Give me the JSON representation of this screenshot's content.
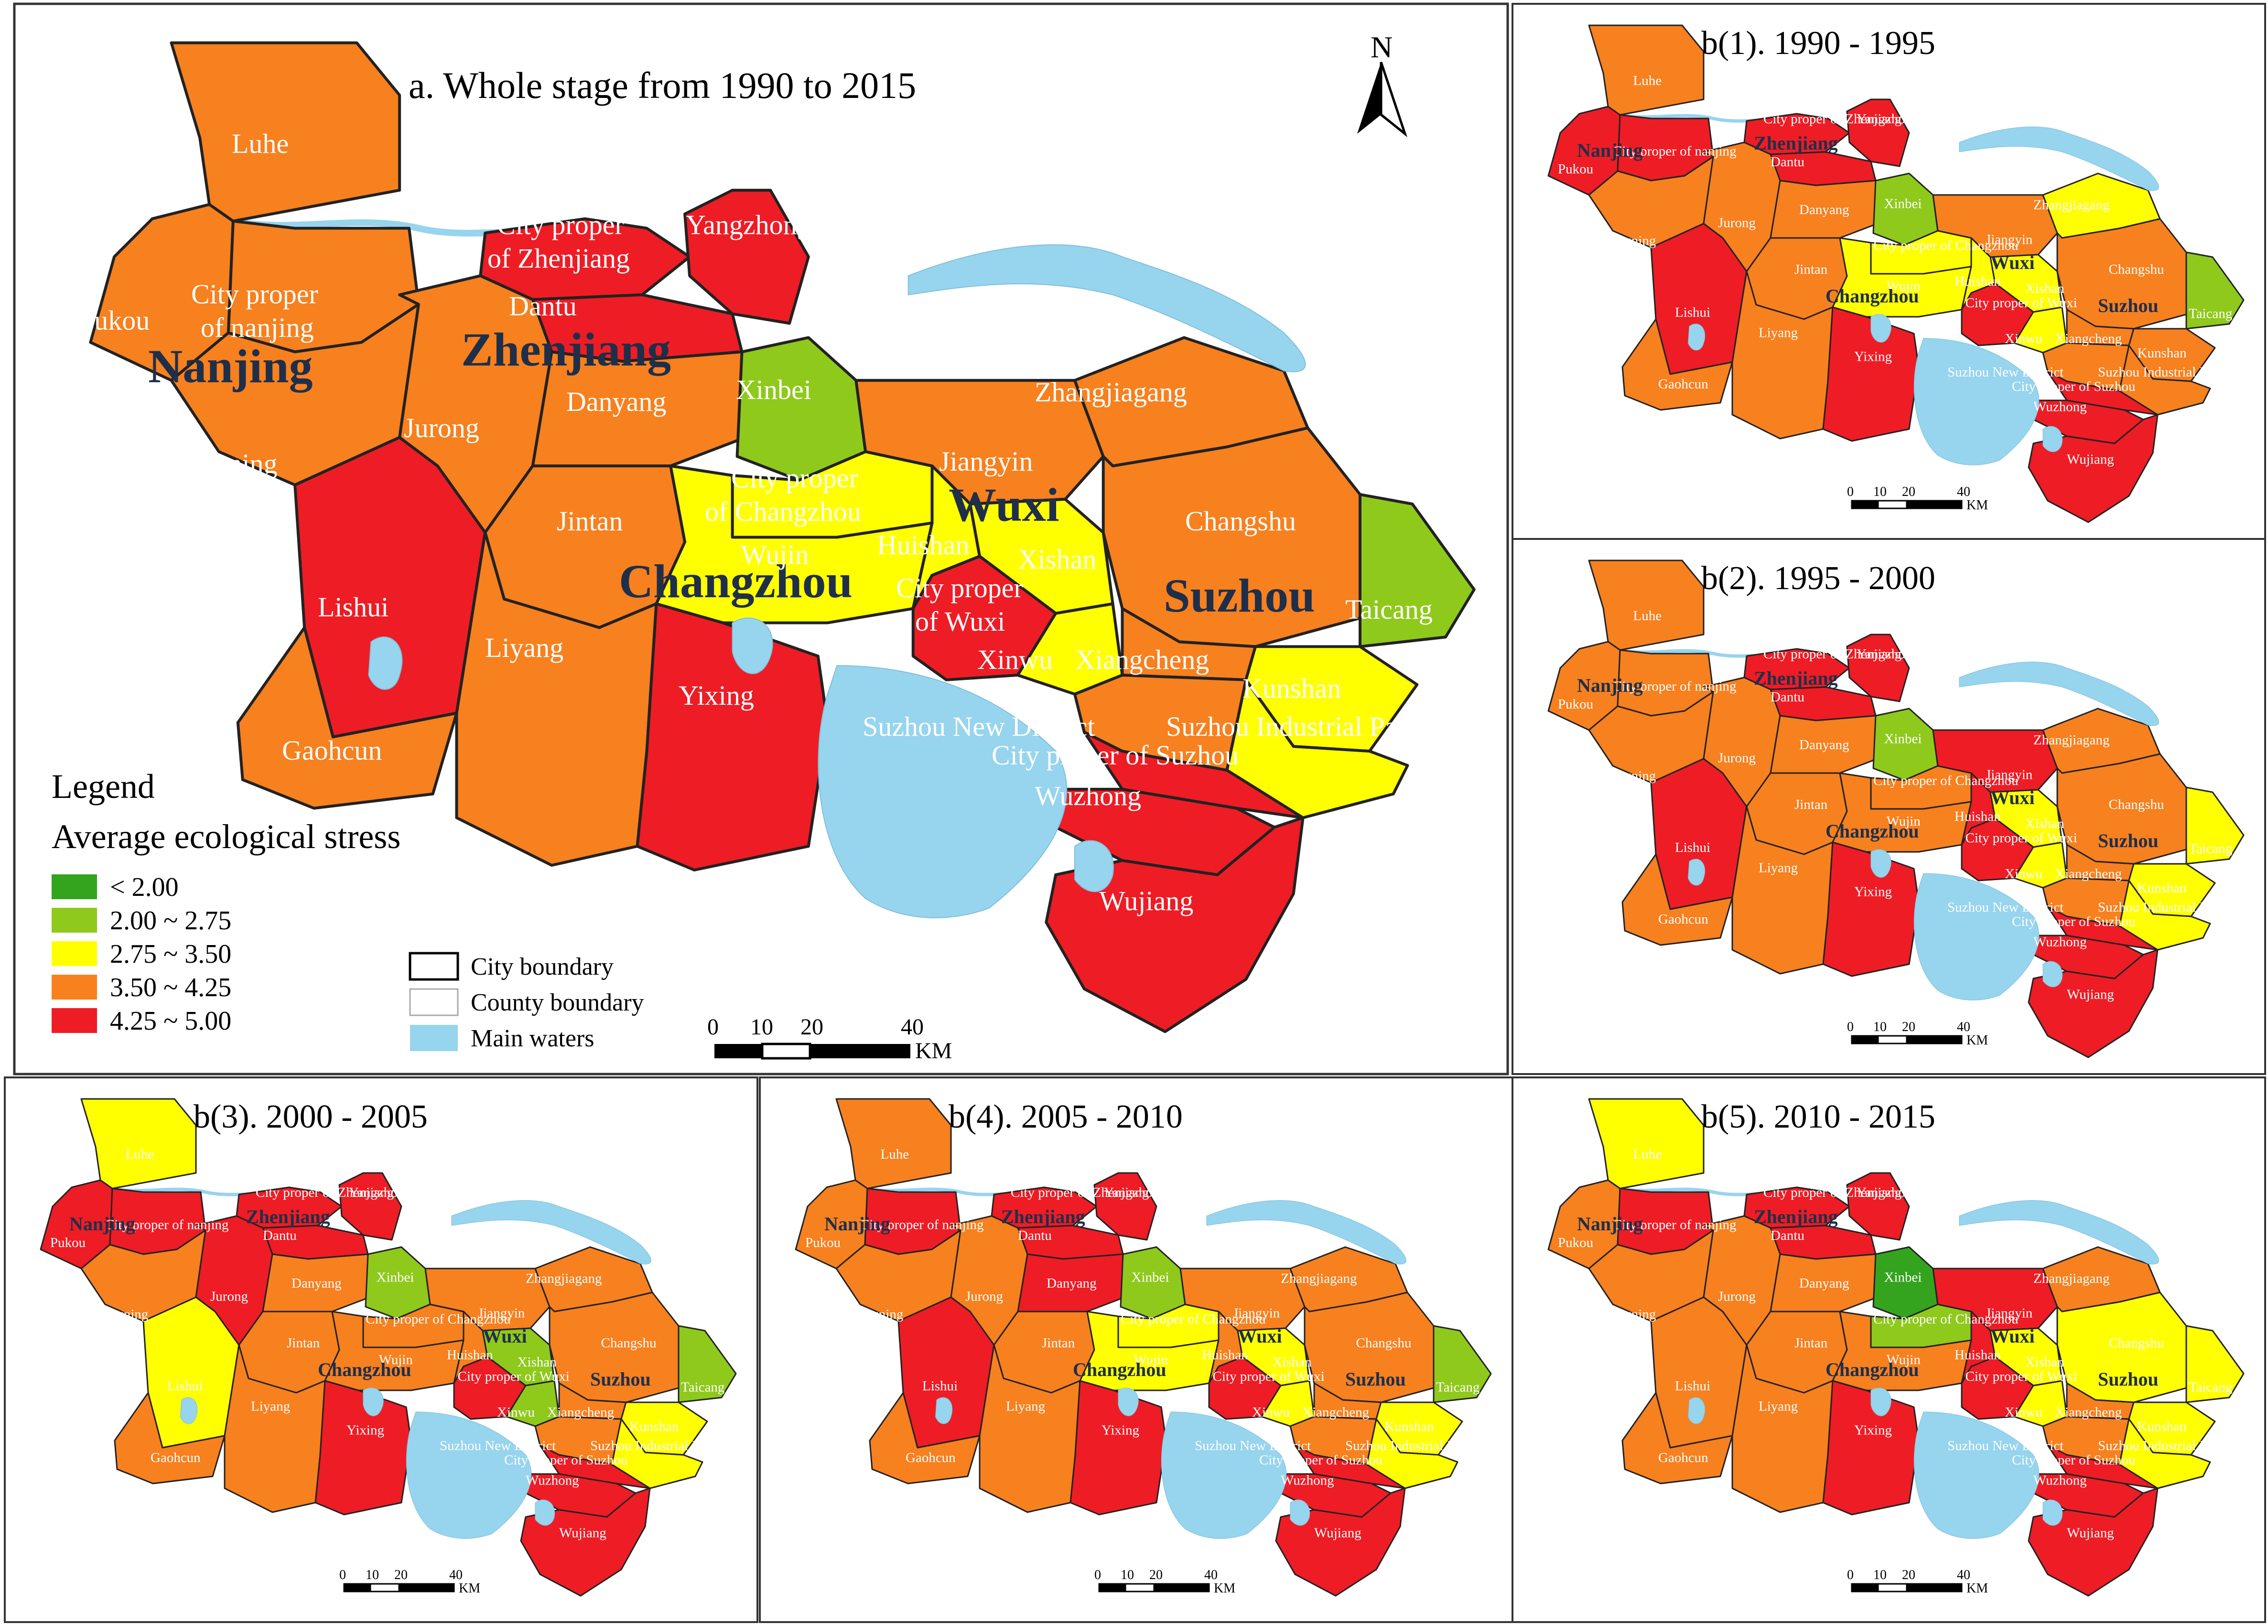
{
  "legend": {
    "title": "Legend",
    "subtitle": "Average ecological stress",
    "classes": [
      {
        "label": "< 2.00",
        "color": "#34a41e"
      },
      {
        "label": "2.00 ~ 2.75",
        "color": "#8fc91c"
      },
      {
        "label": "2.75 ~ 3.50",
        "color": "#ffff00"
      },
      {
        "label": "3.50 ~ 4.25",
        "color": "#f7801f"
      },
      {
        "label": "4.25 ~ 5.00",
        "color": "#ee1c25"
      }
    ],
    "boundaries": [
      {
        "label": "City boundary",
        "key": "city"
      },
      {
        "label": "County boundary",
        "key": "county"
      },
      {
        "label": "Main waters",
        "key": "water"
      }
    ]
  },
  "north_arrow": "N",
  "water_color": "#97d4ee",
  "scalebar": {
    "ticks": [
      "0",
      "10",
      "20",
      "40"
    ],
    "unit": "KM"
  },
  "city_labels": {
    "nanjing": "Nanjing",
    "zhenjiang": "Zhenjiang",
    "changzhou": "Changzhou",
    "wuxi": "Wuxi",
    "suzhou": "Suzhou"
  },
  "county_labels": {
    "luhe": "Luhe",
    "pukou": "Pukou",
    "nanjing_proper": "City proper\nof nanjing",
    "jiangning": "Jiangning",
    "lishui": "Lishui",
    "gaohcun": "Gaohcun",
    "zhenjiang_proper": "City proper\nof Zhenjiang",
    "yangzhong": "Yangzhong",
    "dantu": "Dantu",
    "jurong": "Jurong",
    "danyang": "Danyang",
    "jintan": "Jintan",
    "liyang": "Liyang",
    "xinbei": "Xinbei",
    "changzhou_proper": "City proper\nof Changzhou",
    "wujin": "Wujin",
    "yixing": "Yixing",
    "jiangyin": "Jiangyin",
    "huishan": "Huishan",
    "xishan": "Xishan",
    "wuxi_proper": "City proper\nof Wuxi",
    "xinwu": "Xinwu",
    "xiangcheng": "Xiangcheng",
    "zhangjiagang": "Zhangjiagang",
    "changshu": "Changshu",
    "taicang": "Taicang",
    "kunshan": "Kunshan",
    "sip": "Suzhou Industrial Park",
    "snd": "Suzhou New District",
    "suzhou_proper": "City proper of Suzhou",
    "wuzhong": "Wuzhong",
    "wujiang": "Wujiang"
  },
  "panels": [
    {
      "id": "a",
      "title": "a. Whole stage from 1990 to 2015",
      "classes": {
        "luhe": 3,
        "pukou": 3,
        "nanjing_proper": 3,
        "jiangning": 3,
        "lishui": 4,
        "gaohcun": 3,
        "zhenjiang_proper": 4,
        "yangzhong": 4,
        "dantu": 4,
        "jurong": 3,
        "danyang": 3,
        "jintan": 3,
        "liyang": 3,
        "xinbei": 1,
        "changzhou_proper": 2,
        "wujin": 2,
        "yixing": 4,
        "jiangyin": 3,
        "huishan": 2,
        "xishan": 2,
        "wuxi_proper": 4,
        "xinwu": 2,
        "zhangjiagang": 3,
        "changshu": 3,
        "taicang": 1,
        "kunshan": 2,
        "sip": 2,
        "snd": 3,
        "suzhou_proper": 4,
        "xiangcheng": 3,
        "wuzhong": 4,
        "wujiang": 4
      }
    },
    {
      "id": "b1",
      "title": "b(1). 1990 - 1995",
      "classes": {
        "luhe": 3,
        "pukou": 4,
        "nanjing_proper": 4,
        "jiangning": 3,
        "lishui": 4,
        "gaohcun": 3,
        "zhenjiang_proper": 4,
        "yangzhong": 4,
        "dantu": 4,
        "jurong": 3,
        "danyang": 3,
        "jintan": 3,
        "liyang": 3,
        "xinbei": 1,
        "changzhou_proper": 2,
        "wujin": 2,
        "yixing": 4,
        "jiangyin": 3,
        "huishan": 2,
        "xishan": 2,
        "wuxi_proper": 4,
        "xinwu": 2,
        "zhangjiagang": 2,
        "changshu": 3,
        "taicang": 1,
        "kunshan": 3,
        "sip": 3,
        "snd": 3,
        "suzhou_proper": 4,
        "xiangcheng": 3,
        "wuzhong": 4,
        "wujiang": 4
      }
    },
    {
      "id": "b2",
      "title": "b(2). 1995 - 2000",
      "classes": {
        "luhe": 3,
        "pukou": 3,
        "nanjing_proper": 3,
        "jiangning": 3,
        "lishui": 4,
        "gaohcun": 3,
        "zhenjiang_proper": 4,
        "yangzhong": 4,
        "dantu": 4,
        "jurong": 3,
        "danyang": 3,
        "jintan": 3,
        "liyang": 3,
        "xinbei": 1,
        "changzhou_proper": 3,
        "wujin": 3,
        "yixing": 4,
        "jiangyin": 4,
        "huishan": 4,
        "xishan": 2,
        "wuxi_proper": 4,
        "xinwu": 2,
        "zhangjiagang": 3,
        "changshu": 3,
        "taicang": 2,
        "kunshan": 2,
        "sip": 2,
        "snd": 3,
        "suzhou_proper": 4,
        "xiangcheng": 3,
        "wuzhong": 4,
        "wujiang": 4
      }
    },
    {
      "id": "b3",
      "title": "b(3). 2000 - 2005",
      "classes": {
        "luhe": 2,
        "pukou": 4,
        "nanjing_proper": 4,
        "jiangning": 3,
        "lishui": 2,
        "gaohcun": 3,
        "zhenjiang_proper": 4,
        "yangzhong": 4,
        "dantu": 4,
        "jurong": 4,
        "danyang": 3,
        "jintan": 3,
        "liyang": 3,
        "xinbei": 1,
        "changzhou_proper": 3,
        "wujin": 3,
        "yixing": 4,
        "jiangyin": 3,
        "huishan": 3,
        "xishan": 1,
        "wuxi_proper": 4,
        "xinwu": 1,
        "zhangjiagang": 3,
        "changshu": 3,
        "taicang": 1,
        "kunshan": 2,
        "sip": 2,
        "snd": 3,
        "suzhou_proper": 4,
        "xiangcheng": 3,
        "wuzhong": 4,
        "wujiang": 4
      }
    },
    {
      "id": "b4",
      "title": "b(4). 2005 - 2010",
      "classes": {
        "luhe": 3,
        "pukou": 3,
        "nanjing_proper": 4,
        "jiangning": 3,
        "lishui": 4,
        "gaohcun": 3,
        "zhenjiang_proper": 4,
        "yangzhong": 4,
        "dantu": 4,
        "jurong": 3,
        "danyang": 4,
        "jintan": 3,
        "liyang": 3,
        "xinbei": 1,
        "changzhou_proper": 2,
        "wujin": 2,
        "yixing": 4,
        "jiangyin": 3,
        "huishan": 3,
        "xishan": 2,
        "wuxi_proper": 4,
        "xinwu": 2,
        "zhangjiagang": 3,
        "changshu": 3,
        "taicang": 1,
        "kunshan": 2,
        "sip": 2,
        "snd": 3,
        "suzhou_proper": 4,
        "xiangcheng": 3,
        "wuzhong": 4,
        "wujiang": 4
      }
    },
    {
      "id": "b5",
      "title": "b(5). 2010 - 2015",
      "classes": {
        "luhe": 2,
        "pukou": 3,
        "nanjing_proper": 4,
        "jiangning": 3,
        "lishui": 3,
        "gaohcun": 3,
        "zhenjiang_proper": 4,
        "yangzhong": 4,
        "dantu": 4,
        "jurong": 3,
        "danyang": 3,
        "jintan": 3,
        "liyang": 3,
        "xinbei": 0,
        "changzhou_proper": 1,
        "wujin": 3,
        "yixing": 4,
        "jiangyin": 4,
        "huishan": 4,
        "xishan": 2,
        "wuxi_proper": 4,
        "xinwu": 2,
        "zhangjiagang": 3,
        "changshu": 2,
        "taicang": 2,
        "kunshan": 2,
        "sip": 2,
        "snd": 3,
        "suzhou_proper": 4,
        "xiangcheng": 3,
        "wuzhong": 4,
        "wujiang": 4
      }
    }
  ]
}
